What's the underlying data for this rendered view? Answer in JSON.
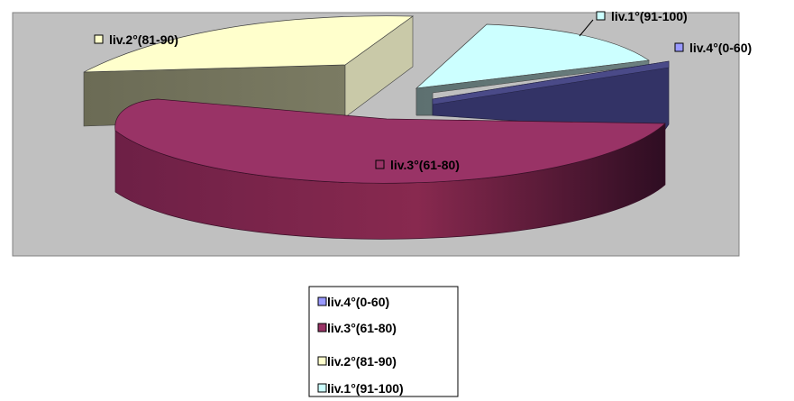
{
  "chart_data": {
    "type": "pie",
    "variant": "3d-exploded",
    "title": "",
    "slices": [
      {
        "label": "liv.4°(0-60)",
        "value": 3,
        "color": "#333366"
      },
      {
        "label": "liv.3°(61-80)",
        "value": 51,
        "color": "#993366"
      },
      {
        "label": "liv.2°(81-90)",
        "value": 33,
        "color": "#ffffcc"
      },
      {
        "label": "liv.1°(91-100)",
        "value": 13,
        "color": "#ccffff"
      }
    ],
    "legend": {
      "position": "bottom",
      "entries": [
        "liv.4°(0-60)",
        "liv.3°(61-80)",
        "liv.2°(81-90)",
        "liv.1°(91-100)"
      ],
      "marker_colors": [
        "#9999ff",
        "#993366",
        "#ffffcc",
        "#ccffff"
      ]
    },
    "plot_background": "#c0c0c0",
    "label_marker_colors": [
      "#9999ff",
      "#993366",
      "#ffffcc",
      "#ccffff"
    ]
  }
}
